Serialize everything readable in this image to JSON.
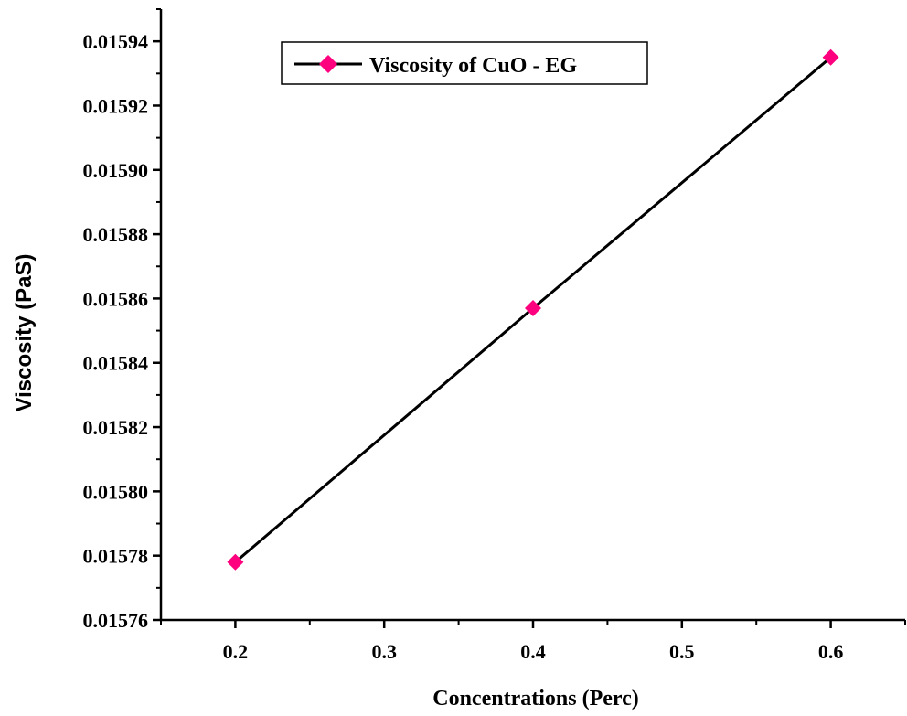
{
  "chart_data": {
    "type": "line",
    "xlabel": "Concentrations (Perc)",
    "ylabel": "Viscosity (PaS)",
    "xlim": [
      0.15,
      0.65
    ],
    "ylim": [
      0.01576,
      0.01595
    ],
    "x_ticks": [
      0.2,
      0.3,
      0.4,
      0.5,
      0.6
    ],
    "x_tick_labels": [
      "0.2",
      "0.3",
      "0.4",
      "0.5",
      "0.6"
    ],
    "y_ticks": [
      0.01576,
      0.01578,
      0.0158,
      0.01582,
      0.01584,
      0.01586,
      0.01588,
      0.0159,
      0.01592,
      0.01594
    ],
    "y_tick_labels": [
      "0.01576",
      "0.01578",
      "0.01580",
      "0.01582",
      "0.01584",
      "0.01586",
      "0.01588",
      "0.01590",
      "0.01592",
      "0.01594"
    ],
    "grid": false,
    "legend_position": "top-center",
    "series": [
      {
        "name": "Viscosity of CuO - EG",
        "x": [
          0.2,
          0.4,
          0.6
        ],
        "y": [
          0.015778,
          0.015857,
          0.015935
        ],
        "line_color": "#000000",
        "marker": "diamond",
        "marker_color": "#ff007f"
      }
    ]
  }
}
